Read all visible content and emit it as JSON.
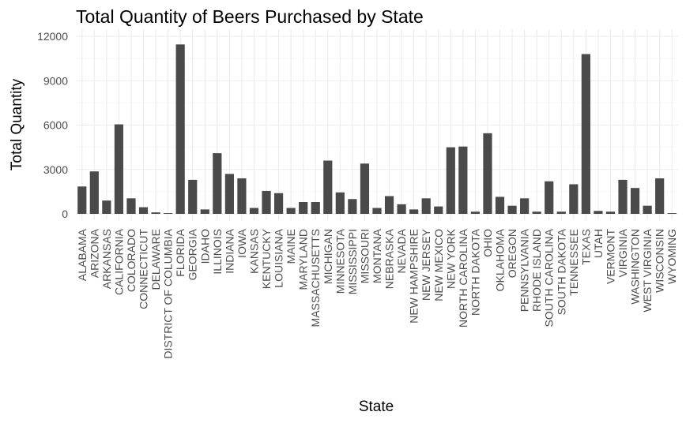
{
  "chart_data": {
    "type": "bar",
    "title": "Total Quantity of Beers Purchased by State",
    "xlabel": "State",
    "ylabel": "Total Quantity",
    "ylim": [
      0,
      12000
    ],
    "y_ticks": [
      0,
      3000,
      6000,
      9000,
      12000
    ],
    "grid": true,
    "legend": "none",
    "colors": {
      "bar": "#4a4a4a",
      "grid": "#ebebeb",
      "text": "#4d4d4d"
    },
    "categories": [
      "ALABAMA",
      "ARIZONA",
      "ARKANSAS",
      "CALIFORNIA",
      "COLORADO",
      "CONNECTICUT",
      "DELAWARE",
      "DISTRICT OF COLUMBIA",
      "FLORIDA",
      "GEORGIA",
      "IDAHO",
      "ILLINOIS",
      "INDIANA",
      "IOWA",
      "KANSAS",
      "KENTUCKY",
      "LOUISIANA",
      "MAINE",
      "MARYLAND",
      "MASSACHUSETTS",
      "MICHIGAN",
      "MINNESOTA",
      "MISSISSIPPI",
      "MISSOURI",
      "MONTANA",
      "NEBRASKA",
      "NEVADA",
      "NEW HAMPSHIRE",
      "NEW JERSEY",
      "NEW MEXICO",
      "NEW YORK",
      "NORTH CAROLINA",
      "NORTH DAKOTA",
      "OHIO",
      "OKLAHOMA",
      "OREGON",
      "PENNSYLVANIA",
      "RHODE ISLAND",
      "SOUTH CAROLINA",
      "SOUTH DAKOTA",
      "TENNESSEE",
      "TEXAS",
      "UTAH",
      "VERMONT",
      "VIRGINIA",
      "WASHINGTON",
      "WEST VIRGINIA",
      "WISCONSIN",
      "WYOMING"
    ],
    "values": [
      1850,
      2870,
      900,
      6050,
      1050,
      450,
      100,
      50,
      11450,
      2300,
      300,
      4100,
      2700,
      2400,
      400,
      1550,
      1400,
      400,
      800,
      800,
      3600,
      1450,
      1000,
      3400,
      400,
      1200,
      650,
      300,
      1050,
      500,
      4500,
      4550,
      150,
      5450,
      1150,
      550,
      1050,
      150,
      2200,
      150,
      2000,
      10800,
      200,
      150,
      2300,
      1750,
      550,
      2400,
      50
    ]
  }
}
